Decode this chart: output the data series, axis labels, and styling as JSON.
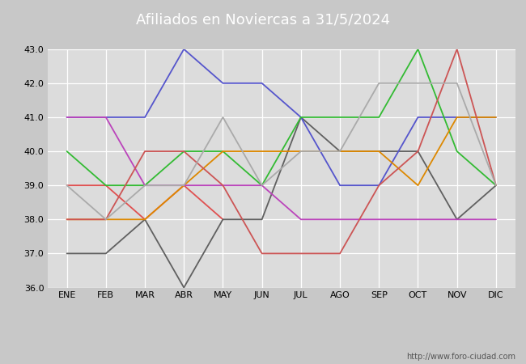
{
  "title": "Afiliados en Noviercas a 31/5/2024",
  "months": [
    "ENE",
    "FEB",
    "MAR",
    "ABR",
    "MAY",
    "JUN",
    "JUL",
    "AGO",
    "SEP",
    "OCT",
    "NOV",
    "DIC"
  ],
  "ylim": [
    36.0,
    43.0
  ],
  "yticks": [
    36.0,
    37.0,
    38.0,
    39.0,
    40.0,
    41.0,
    42.0,
    43.0
  ],
  "series": {
    "2024": {
      "color": "#e05050",
      "data": [
        39,
        39,
        38,
        39,
        38,
        null,
        null,
        null,
        null,
        null,
        null,
        null
      ]
    },
    "2023": {
      "color": "#606060",
      "data": [
        37,
        37,
        38,
        36,
        38,
        38,
        41,
        40,
        40,
        40,
        38,
        39
      ]
    },
    "2022": {
      "color": "#5555cc",
      "data": [
        41,
        41,
        41,
        43,
        42,
        42,
        41,
        39,
        39,
        41,
        41,
        41
      ]
    },
    "2021": {
      "color": "#33bb33",
      "data": [
        40,
        39,
        39,
        40,
        40,
        39,
        41,
        41,
        41,
        43,
        40,
        39
      ]
    },
    "2020": {
      "color": "#dd8800",
      "data": [
        38,
        38,
        38,
        39,
        40,
        40,
        40,
        40,
        40,
        39,
        41,
        41
      ]
    },
    "2019": {
      "color": "#bb44bb",
      "data": [
        41,
        41,
        39,
        39,
        39,
        39,
        38,
        38,
        38,
        38,
        38,
        38
      ]
    },
    "2018": {
      "color": "#cc5555",
      "data": [
        38,
        38,
        40,
        40,
        39,
        37,
        37,
        37,
        39,
        40,
        43,
        39
      ]
    },
    "2017": {
      "color": "#aaaaaa",
      "data": [
        39,
        38,
        39,
        39,
        41,
        39,
        40,
        40,
        42,
        42,
        42,
        39
      ]
    }
  },
  "header_color": "#5b9bd5",
  "plot_bg_color": "#dcdcdc",
  "fig_bg_color": "#c8c8c8",
  "legend_bg": "white",
  "url_text": "http://www.foro-ciudad.com",
  "title_fontsize": 13,
  "tick_fontsize": 8,
  "legend_fontsize": 8,
  "linewidth": 1.3
}
